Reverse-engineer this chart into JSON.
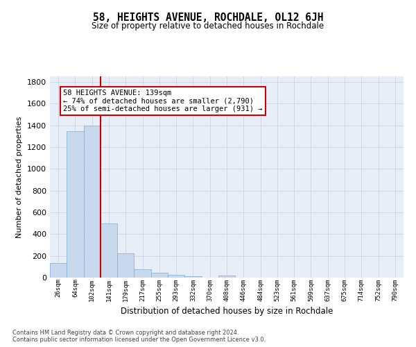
{
  "title": "58, HEIGHTS AVENUE, ROCHDALE, OL12 6JH",
  "subtitle": "Size of property relative to detached houses in Rochdale",
  "xlabel": "Distribution of detached houses by size in Rochdale",
  "ylabel": "Number of detached properties",
  "bar_labels": [
    "26sqm",
    "64sqm",
    "102sqm",
    "141sqm",
    "179sqm",
    "217sqm",
    "255sqm",
    "293sqm",
    "332sqm",
    "370sqm",
    "408sqm",
    "446sqm",
    "484sqm",
    "523sqm",
    "561sqm",
    "599sqm",
    "637sqm",
    "675sqm",
    "714sqm",
    "752sqm",
    "790sqm"
  ],
  "bar_values": [
    135,
    1345,
    1400,
    495,
    225,
    75,
    42,
    25,
    10,
    0,
    20,
    0,
    0,
    0,
    0,
    0,
    0,
    0,
    0,
    0,
    0
  ],
  "bar_color": "#c8d9ee",
  "bar_edge_color": "#7aadd4",
  "property_line_x": 2.5,
  "annotation_text": "58 HEIGHTS AVENUE: 139sqm\n← 74% of detached houses are smaller (2,790)\n25% of semi-detached houses are larger (931) →",
  "annotation_box_color": "#ffffff",
  "annotation_box_edge_color": "#cc0000",
  "property_line_color": "#cc0000",
  "ylim": [
    0,
    1850
  ],
  "yticks": [
    0,
    200,
    400,
    600,
    800,
    1000,
    1200,
    1400,
    1600,
    1800
  ],
  "grid_color": "#d0d8e8",
  "background_color": "#e8eef8",
  "footer_line1": "Contains HM Land Registry data © Crown copyright and database right 2024.",
  "footer_line2": "Contains public sector information licensed under the Open Government Licence v3.0."
}
